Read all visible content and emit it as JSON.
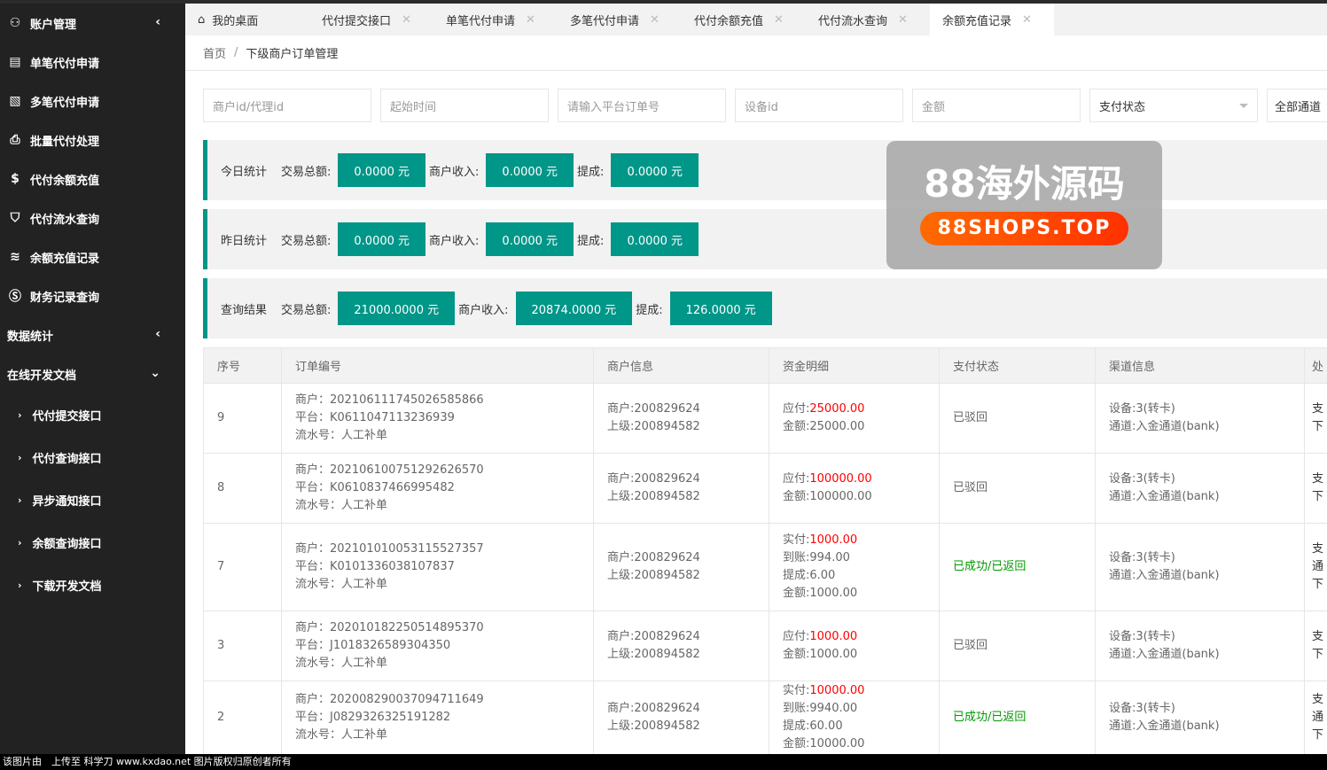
{
  "sidebar": {
    "items": [
      {
        "label": "账户管理",
        "icon": "user-icon",
        "chev": "‹"
      },
      {
        "label": "单笔代付申请",
        "icon": "document-icon"
      },
      {
        "label": "多笔代付申请",
        "icon": "document-edit-icon"
      },
      {
        "label": "批量代付处理",
        "icon": "printer-icon"
      },
      {
        "label": "代付余额充值",
        "icon": "dollar-icon"
      },
      {
        "label": "代付流水查询",
        "icon": "shield-icon"
      },
      {
        "label": "余额充值记录",
        "icon": "database-icon"
      },
      {
        "label": "财务记录查询",
        "icon": "dollar-circle-icon"
      },
      {
        "label": "数据统计",
        "chev": "‹"
      },
      {
        "label": "在线开发文档",
        "chev": "⌄"
      }
    ],
    "subitems": [
      "代付提交接口",
      "代付查询接口",
      "异步通知接口",
      "余额查询接口",
      "下载开发文档"
    ]
  },
  "tabs": [
    {
      "label": "我的桌面"
    },
    {
      "label": "代付提交接口"
    },
    {
      "label": "单笔代付申请"
    },
    {
      "label": "多笔代付申请"
    },
    {
      "label": "代付余额充值"
    },
    {
      "label": "代付流水查询"
    },
    {
      "label": "余额充值记录"
    }
  ],
  "breadcrumb": [
    "首页",
    "下级商户订单管理"
  ],
  "filters": {
    "merchant": "商户id/代理id",
    "start": "起始时间",
    "order": "请输入平台订单号",
    "device": "设备id",
    "amount": "金额",
    "status": "支付状态",
    "channel": "全部通道"
  },
  "stats": [
    {
      "label": "今日统计",
      "total_k": "交易总额:",
      "total": "0.0000 元",
      "income_k": "商户收入:",
      "income": "0.0000 元",
      "fee_k": "提成:",
      "fee": "0.0000 元"
    },
    {
      "label": "昨日统计",
      "total_k": "交易总额:",
      "total": "0.0000 元",
      "income_k": "商户收入:",
      "income": "0.0000 元",
      "fee_k": "提成:",
      "fee": "0.0000 元"
    },
    {
      "label": "查询结果",
      "total_k": "交易总额:",
      "total": "21000.0000 元",
      "income_k": "商户收入:",
      "income": "20874.0000 元",
      "fee_k": "提成:",
      "fee": "126.0000 元"
    }
  ],
  "table": {
    "headers": [
      "序号",
      "订单编号",
      "商户信息",
      "资金明细",
      "支付状态",
      "渠道信息",
      "处"
    ],
    "rows": [
      {
        "no": "9",
        "order": [
          "商户：20210611174502658586​6",
          "平台：K0611047113236939",
          "流水号：人工补单"
        ],
        "merchant": [
          "商户:200829624",
          "上级:200894582"
        ],
        "funds": [
          [
            "应付:",
            "25000.00"
          ],
          [
            "金额:25000.00",
            ""
          ]
        ],
        "status": "已驳回",
        "ok": false,
        "channel": [
          "设备:3(转卡)",
          "通道:入金通道(bank)"
        ],
        "extra": [
          "支",
          "下"
        ]
      },
      {
        "no": "8",
        "order": [
          "商户：202106100751292626570",
          "平台：K0610837466995482",
          "流水号：人工补单"
        ],
        "merchant": [
          "商户:200829624",
          "上级:200894582"
        ],
        "funds": [
          [
            "应付:",
            "100000.00"
          ],
          [
            "金额:100000.00",
            ""
          ]
        ],
        "status": "已驳回",
        "ok": false,
        "channel": [
          "设备:3(转卡)",
          "通道:入金通道(bank)"
        ],
        "extra": [
          "支",
          "下"
        ]
      },
      {
        "no": "7",
        "order": [
          "商户：202101010053115527357",
          "平台：K0101336038107837",
          "流水号：人工补单"
        ],
        "merchant": [
          "商户:200829624",
          "上级:200894582"
        ],
        "funds": [
          [
            "实付:",
            "1000.00"
          ],
          [
            "到账:994.00",
            ""
          ],
          [
            "提成:6.00",
            ""
          ],
          [
            "金额:1000.00",
            ""
          ]
        ],
        "status": "已成功/已返回",
        "ok": true,
        "channel": [
          "设备:3(转卡)",
          "通道:入金通道(bank)"
        ],
        "extra": [
          "支",
          "通",
          "下"
        ]
      },
      {
        "no": "3",
        "order": [
          "商户：202010182250514895370",
          "平台：J1018326589304350",
          "流水号：人工补单"
        ],
        "merchant": [
          "商户:200829624",
          "上级:200894582"
        ],
        "funds": [
          [
            "应付:",
            "1000.00"
          ],
          [
            "金额:1000.00",
            ""
          ]
        ],
        "status": "已驳回",
        "ok": false,
        "channel": [
          "设备:3(转卡)",
          "通道:入金通道(bank)"
        ],
        "extra": [
          "支",
          "下"
        ]
      },
      {
        "no": "2",
        "order": [
          "商户：202008290037094711649",
          "平台：J0829326325191282",
          "流水号：人工补单"
        ],
        "merchant": [
          "商户:200829624",
          "上级:200894582"
        ],
        "funds": [
          [
            "实付:",
            "10000.00"
          ],
          [
            "到账:9940.00",
            ""
          ],
          [
            "提成:60.00",
            ""
          ],
          [
            "金额:10000.00",
            ""
          ]
        ],
        "status": "已成功/已返回",
        "ok": true,
        "channel": [
          "设备:3(转卡)",
          "通道:入金通道(bank)"
        ],
        "extra": [
          "支",
          "通",
          "下"
        ]
      }
    ]
  },
  "watermark": {
    "title": "88海外源码",
    "badge": "88SHOPS.TOP"
  },
  "footer": "该图片由　上传至 科学刀 www.kxdao.net 图片版权归原创者所有",
  "colors": {
    "accent": "#009688",
    "sidebar": "#222222",
    "danger": "#ff0000",
    "success": "#009900"
  }
}
